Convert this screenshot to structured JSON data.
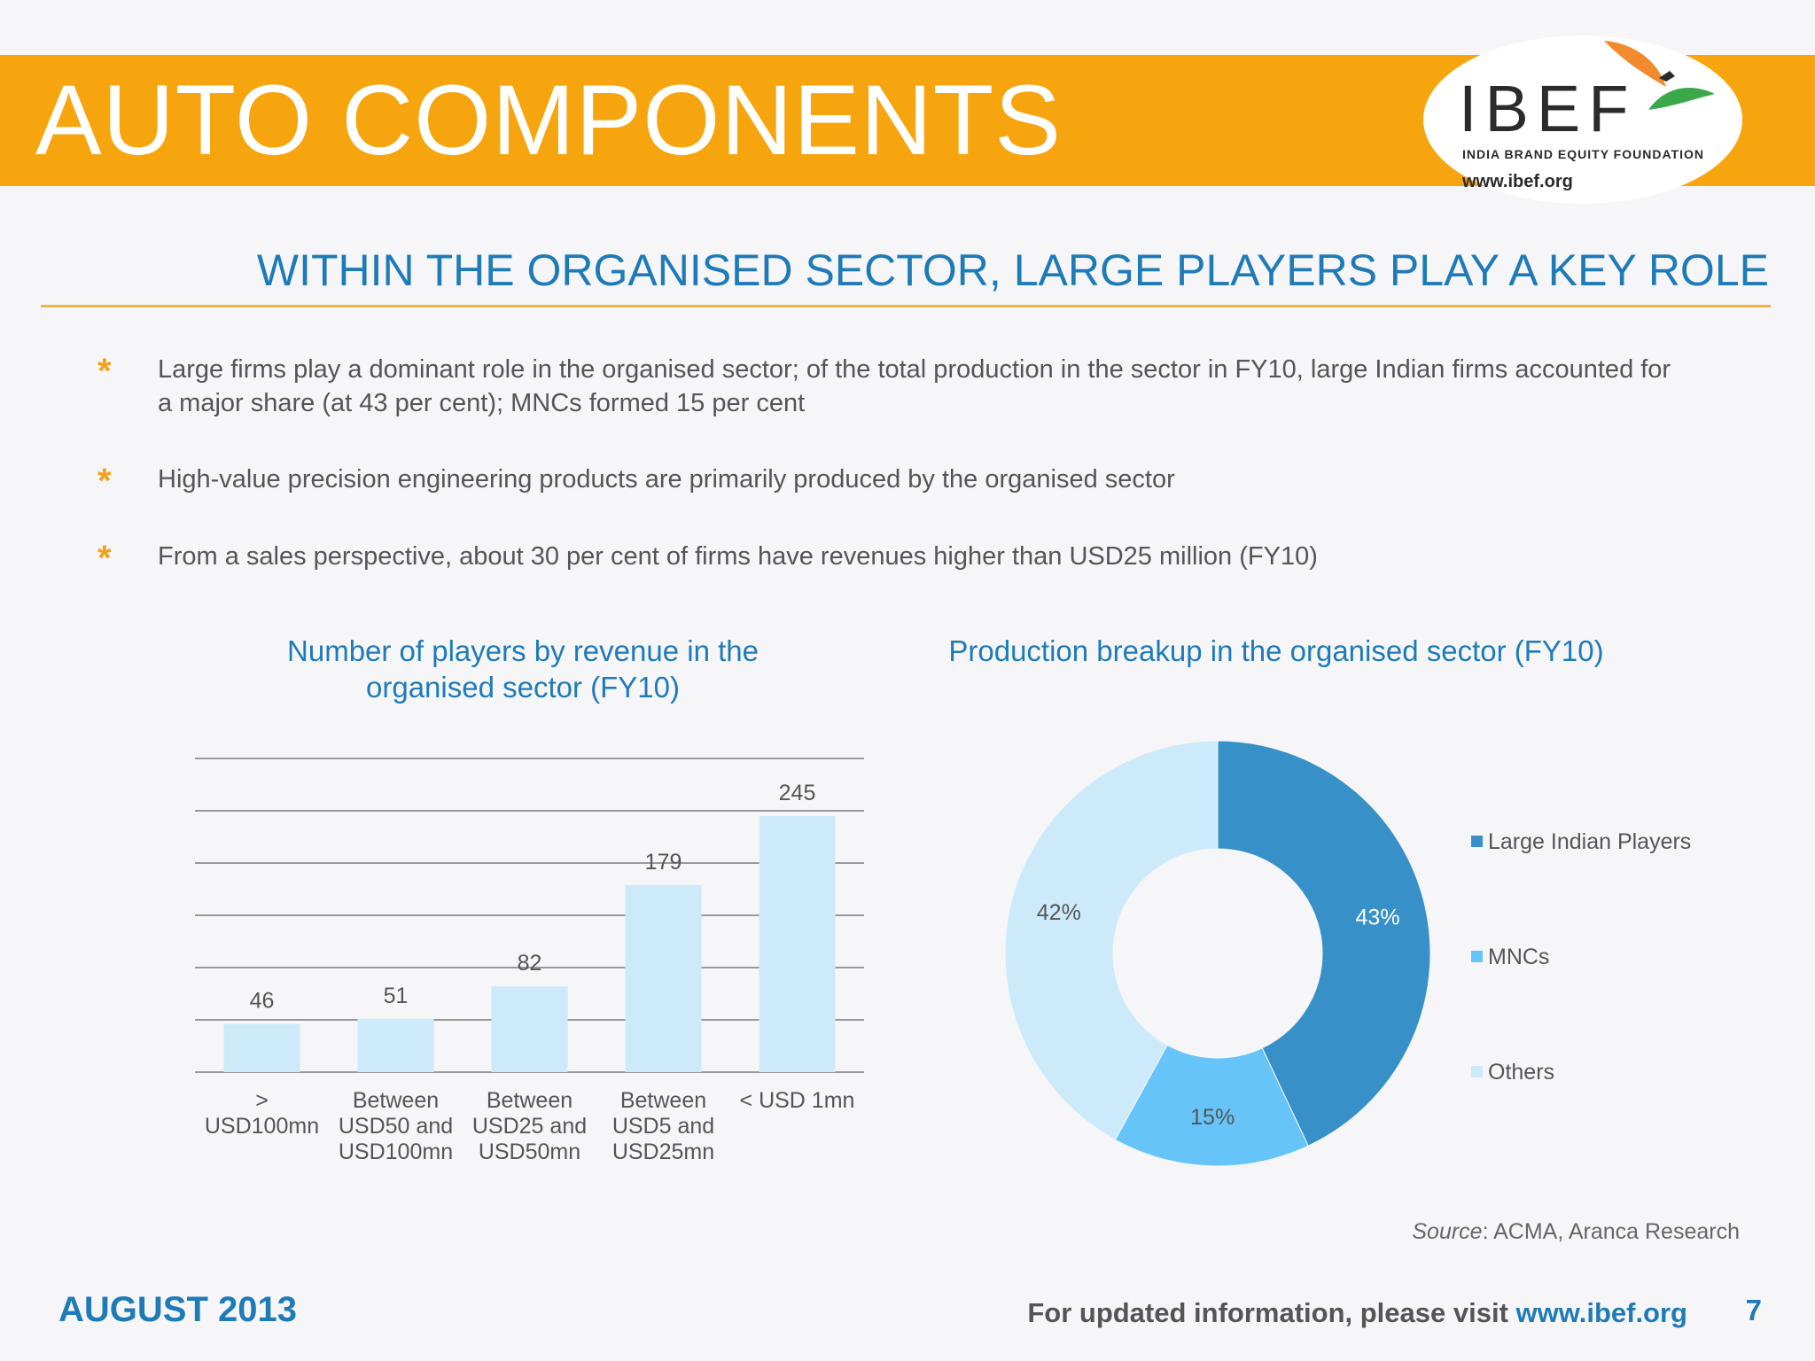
{
  "header": {
    "title": "AUTO COMPONENTS",
    "logo": {
      "name": "IBEF",
      "tagline": "INDIA BRAND EQUITY FOUNDATION",
      "url": "www.ibef.org"
    }
  },
  "subtitle": "WITHIN THE ORGANISED SECTOR, LARGE PLAYERS PLAY A KEY ROLE",
  "bullets": [
    "Large firms play a dominant role in the organised sector; of the total production in the sector in FY10, large Indian firms accounted for a major share (at 43 per cent); MNCs formed 15 per cent",
    "High-value precision engineering products are primarily produced by the organised sector",
    "From a sales perspective, about 30 per cent of firms have revenues higher than USD25 million (FY10)"
  ],
  "bullet_marker": "*",
  "chart_data": [
    {
      "type": "bar",
      "title": "Number of players by revenue in the organised sector (FY10)",
      "categories": [
        "> USD100mn",
        "Between USD50 and USD100mn",
        "Between USD25 and USD50mn",
        "Between USD5 and USD25mn",
        "< USD 1mn"
      ],
      "values": [
        46,
        51,
        82,
        179,
        245
      ],
      "ylim": [
        0,
        300
      ],
      "grid": true,
      "bar_color": "#cdeafb"
    },
    {
      "type": "pie",
      "title": "Production breakup in the organised sector (FY10)",
      "labels": [
        "Large Indian Players",
        "MNCs",
        "Others"
      ],
      "values": [
        43,
        15,
        42
      ],
      "value_labels": [
        "43%",
        "15%",
        "42%"
      ],
      "colors": [
        "#3790c8",
        "#66c4f8",
        "#cdeafb"
      ],
      "donut": true,
      "legend": "right"
    }
  ],
  "source": {
    "label": "Source",
    "text": ": ACMA, Aranca Research"
  },
  "footer": {
    "date": "AUGUST 2013",
    "text": "For updated information, please visit ",
    "link": "www.ibef.org",
    "page": "7"
  }
}
